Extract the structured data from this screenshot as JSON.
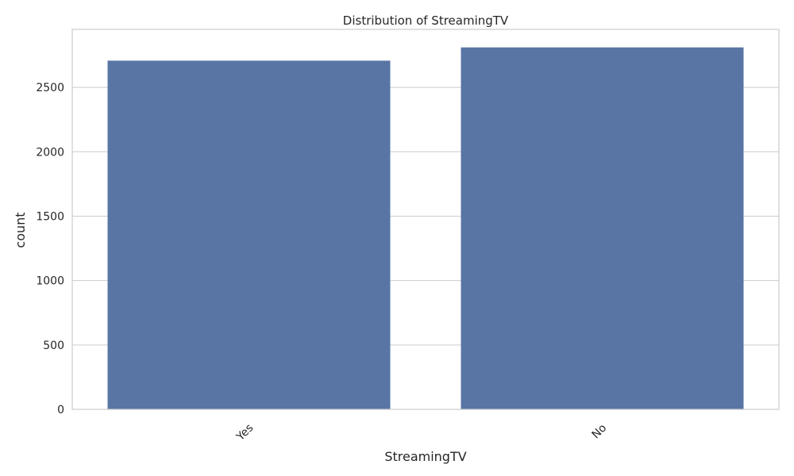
{
  "chart_data": {
    "type": "bar",
    "title": "Distribution of StreamingTV",
    "xlabel": "StreamingTV",
    "ylabel": "count",
    "categories": [
      "Yes",
      "No"
    ],
    "values": [
      2707,
      2810
    ],
    "ylim": [
      0,
      2950
    ],
    "yticks": [
      0,
      500,
      1000,
      1500,
      2000,
      2500
    ],
    "ytick_labels": [
      "0",
      "500",
      "1000",
      "1500",
      "2000",
      "2500"
    ],
    "grid": "horizontal",
    "bar_color": "#5975a4",
    "grid_color": "#cccccc",
    "frame_color": "#cccccc",
    "xtick_rotation": 45
  }
}
